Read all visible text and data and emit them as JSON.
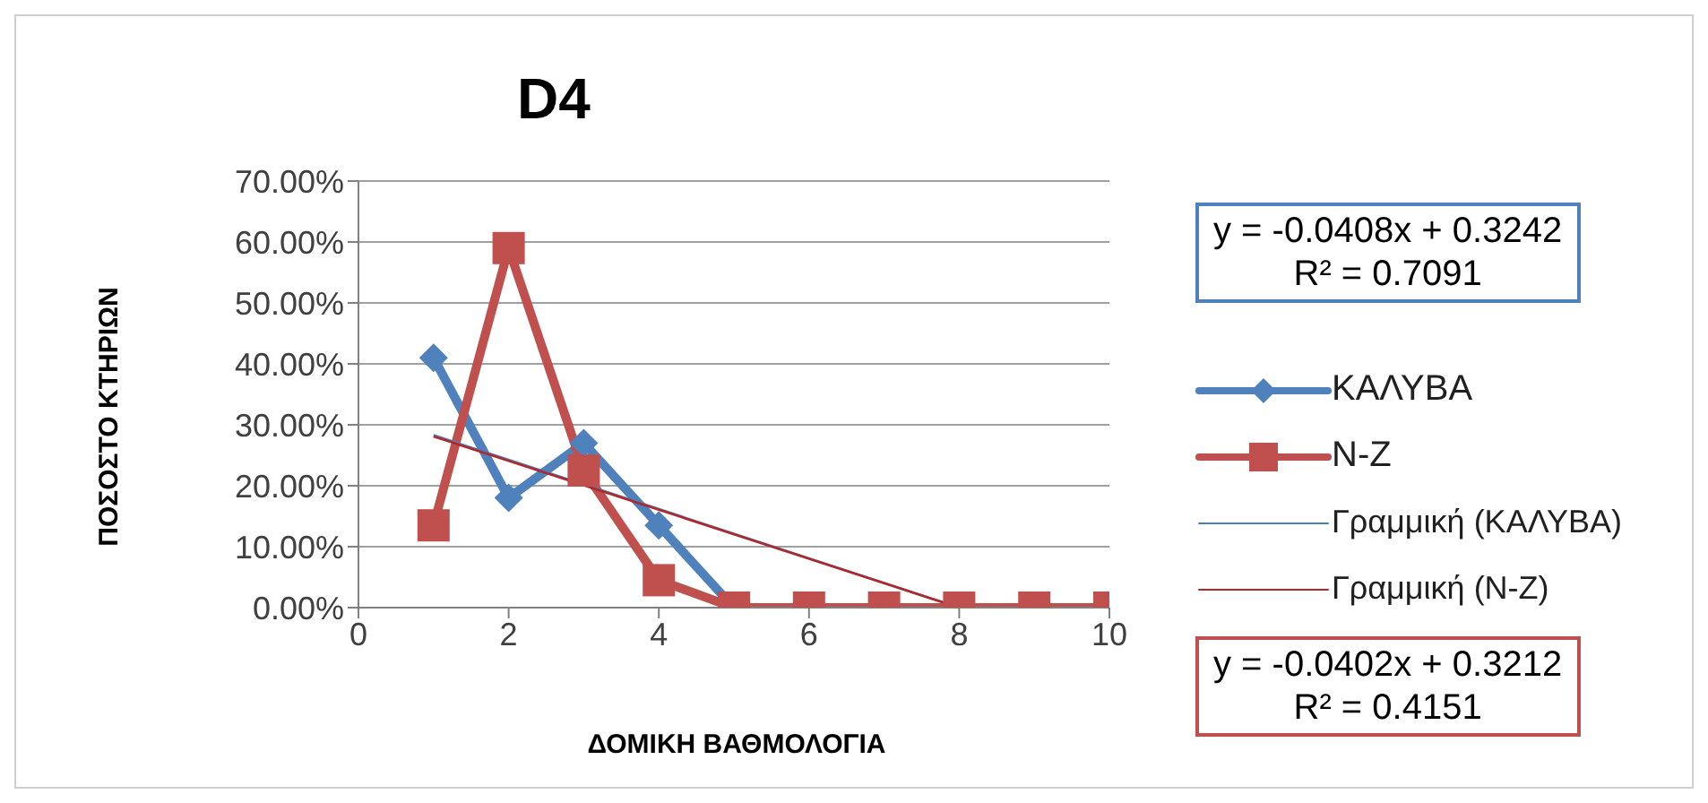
{
  "chart_data": {
    "type": "line",
    "title": "D4",
    "xlabel": "ΔΟΜΙΚΗ ΒΑΘΜΟΛΟΓΙΑ",
    "ylabel": "ΠΟΣΟΣΤΟ ΚΤΗΡΙΩΝ",
    "xlim": [
      0,
      10
    ],
    "xticks": [
      0,
      2,
      4,
      6,
      8,
      10
    ],
    "ylim": [
      0,
      70
    ],
    "yticks": [
      {
        "value": 0,
        "label": "0.00%"
      },
      {
        "value": 10,
        "label": "10.00%"
      },
      {
        "value": 20,
        "label": "20.00%"
      },
      {
        "value": 30,
        "label": "30.00%"
      },
      {
        "value": 40,
        "label": "40.00%"
      },
      {
        "value": 50,
        "label": "50.00%"
      },
      {
        "value": 60,
        "label": "60.00%"
      },
      {
        "value": 70,
        "label": "70.00%"
      }
    ],
    "grid": "y",
    "legend": "right",
    "series": [
      {
        "name": "ΚΑΛΥΒΑ",
        "color": "#4f81bd",
        "marker": "diamond",
        "x": [
          1,
          2,
          3,
          4,
          5
        ],
        "values": [
          41,
          18,
          27,
          13.5,
          0
        ]
      },
      {
        "name": "Ν-Ζ",
        "color": "#c0504d",
        "marker": "square",
        "x": [
          1,
          2,
          3,
          4,
          5,
          6,
          7,
          8,
          9,
          10
        ],
        "values": [
          13.5,
          59,
          22.5,
          4.5,
          0,
          0,
          0,
          0,
          0,
          0
        ]
      },
      {
        "name": "Γραμμική (ΚΑΛΥΒΑ)",
        "color": "#4a7ebb",
        "marker": "none",
        "x": [
          1,
          8
        ],
        "values": [
          28.3,
          0
        ]
      },
      {
        "name": "Γραμμική (Ν-Ζ)",
        "color": "#b0282a",
        "marker": "none",
        "x": [
          1,
          8
        ],
        "values": [
          28.1,
          0
        ]
      }
    ],
    "annotations": [
      "y = -0.0408x + 0.3242\nR² = 0.7091",
      "y = -0.0402x + 0.3212\nR² = 0.4151"
    ]
  }
}
